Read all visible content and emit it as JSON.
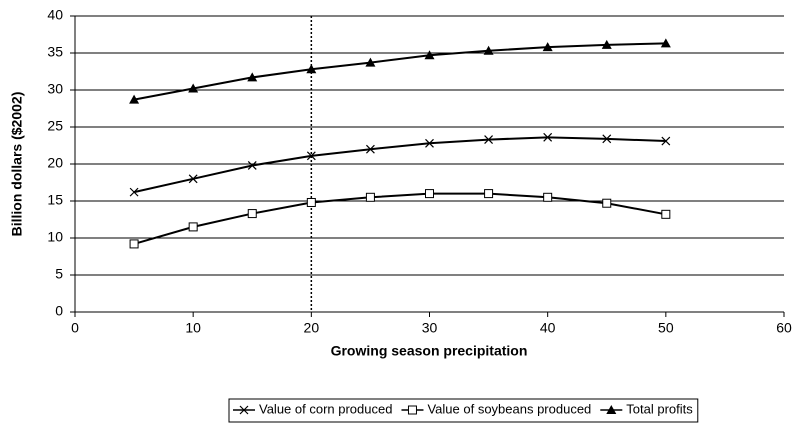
{
  "chart_data": {
    "type": "line",
    "x_label": "Growing season precipitation",
    "y_label": "Billion dollars ($2002)",
    "x": [
      5,
      10,
      15,
      20,
      25,
      30,
      35,
      40,
      45,
      50
    ],
    "series": [
      {
        "name": "Value of corn produced",
        "color": "#000000",
        "marker": "x",
        "values": [
          16.2,
          18.0,
          19.8,
          21.1,
          22.0,
          22.8,
          23.3,
          23.6,
          23.4,
          23.1
        ]
      },
      {
        "name": "Value of soybeans produced",
        "color": "#000000",
        "marker": "square",
        "values": [
          9.2,
          11.5,
          13.3,
          14.8,
          15.5,
          16.0,
          16.0,
          15.5,
          14.7,
          13.2
        ]
      },
      {
        "name": "Total profits",
        "color": "#000000",
        "marker": "triangle",
        "values": [
          28.7,
          30.2,
          31.7,
          32.8,
          33.7,
          34.7,
          35.3,
          35.8,
          36.1,
          36.3
        ]
      }
    ],
    "xlim": [
      0,
      60
    ],
    "xticks": [
      0,
      10,
      20,
      30,
      40,
      50,
      60
    ],
    "ylim": [
      0,
      40
    ],
    "yticks": [
      0,
      5,
      10,
      15,
      20,
      25,
      30,
      35,
      40
    ],
    "vline": 20,
    "grid": true,
    "legend": "bottom"
  }
}
